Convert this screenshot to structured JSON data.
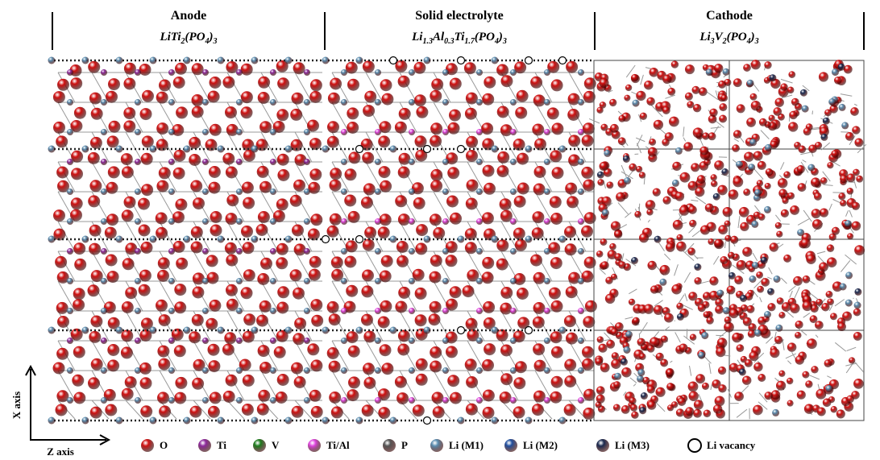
{
  "panels": [
    {
      "title": "Anode",
      "formula": [
        {
          "t": "LiTi"
        },
        {
          "s": "2"
        },
        {
          "t": "(PO"
        },
        {
          "s": "4"
        },
        {
          "t": ")"
        },
        {
          "s": "3"
        }
      ]
    },
    {
      "title": "Solid electrolyte",
      "formula": [
        {
          "t": "Li"
        },
        {
          "s": "1.3"
        },
        {
          "t": "Al"
        },
        {
          "s": "0.3"
        },
        {
          "t": "Ti"
        },
        {
          "s": "1.7"
        },
        {
          "t": "(PO"
        },
        {
          "s": "4"
        },
        {
          "t": ")"
        },
        {
          "s": "3"
        }
      ]
    },
    {
      "title": "Cathode",
      "formula": [
        {
          "t": "Li"
        },
        {
          "s": "3"
        },
        {
          "t": "V"
        },
        {
          "s": "2"
        },
        {
          "t": "(PO"
        },
        {
          "s": "4"
        },
        {
          "t": ")"
        },
        {
          "s": "3"
        }
      ]
    }
  ],
  "axes": {
    "x": "X axis",
    "z": "Z axis"
  },
  "legend": [
    {
      "label": "O",
      "color": "#d01010"
    },
    {
      "label": "Ti",
      "color": "#8e2a9e"
    },
    {
      "label": "V",
      "color": "#1b7d1b"
    },
    {
      "label": "Ti/Al",
      "color": "#e045e0"
    },
    {
      "label": "P",
      "color": "#555555"
    },
    {
      "label": "Li (M1)",
      "color": "#5a8db0"
    },
    {
      "label": "Li (M2)",
      "color": "#1f4fa0"
    },
    {
      "label": "Li (M3)",
      "color": "#1a2a50"
    },
    {
      "label": "Li vacancy",
      "color": "#ffffff"
    }
  ]
}
